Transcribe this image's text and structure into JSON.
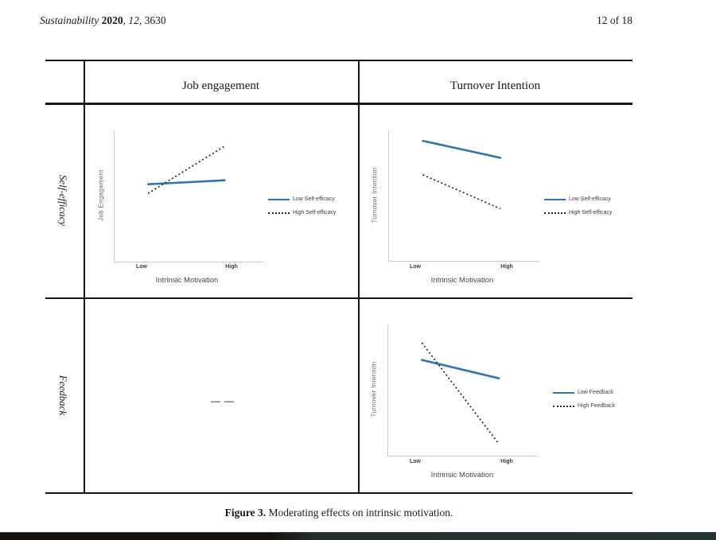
{
  "page": {
    "header": {
      "journal": "Sustainability",
      "space": " ",
      "year": "2020",
      "sep1": ", ",
      "volume": "12",
      "sep2": ", 3630",
      "page_number": "12 of 18"
    },
    "caption": {
      "label": "Figure 3.",
      "text": " Moderating effects on intrinsic motivation."
    }
  },
  "table": {
    "column_headers": [
      "Job engagement",
      "Turnover Intention"
    ],
    "row_headers": [
      "Self-efficacy",
      "Feedback"
    ],
    "empty_cell_marker": "— —"
  },
  "chart_data": [
    {
      "id": "self-efficacy-job-engagement",
      "type": "line",
      "row": "Self-efficacy",
      "column": "Job engagement",
      "xlabel": "Intrinsic Motivation",
      "ylabel": "Job Engagement",
      "x_categories": [
        "Low",
        "High"
      ],
      "ylim": [
        0,
        1
      ],
      "grid": false,
      "legend_position": "right",
      "series": [
        {
          "name": "Low Self-efficacy",
          "style": "solid",
          "color": "#2E75B6",
          "values": [
            0.59,
            0.62
          ]
        },
        {
          "name": "High Self-efficacy",
          "style": "dotted",
          "color": "#262626",
          "values": [
            0.52,
            0.88
          ]
        }
      ]
    },
    {
      "id": "self-efficacy-turnover-intention",
      "type": "line",
      "row": "Self-efficacy",
      "column": "Turnover Intention",
      "xlabel": "Intrinsic Motivation",
      "ylabel": "Turnover Intention",
      "x_categories": [
        "Low",
        "High"
      ],
      "ylim": [
        0,
        1
      ],
      "grid": false,
      "legend_position": "right",
      "series": [
        {
          "name": "Low Self-efficacy",
          "style": "solid",
          "color": "#2E75B6",
          "values": [
            0.92,
            0.79
          ]
        },
        {
          "name": "High Self-efficacy",
          "style": "dotted",
          "color": "#262626",
          "values": [
            0.66,
            0.4
          ]
        }
      ]
    },
    {
      "id": "feedback-turnover-intention",
      "type": "line",
      "row": "Feedback",
      "column": "Turnover Intention",
      "xlabel": "Intrinsic Motivation",
      "ylabel": "Turnover Intention",
      "x_categories": [
        "Low",
        "High"
      ],
      "ylim": [
        0,
        1
      ],
      "grid": false,
      "legend_position": "right",
      "series": [
        {
          "name": "Low Feedback",
          "style": "solid",
          "color": "#2E75B6",
          "values": [
            0.73,
            0.59
          ]
        },
        {
          "name": "High Feedback",
          "style": "dotted",
          "color": "#262626",
          "values": [
            0.86,
            0.09
          ]
        }
      ]
    }
  ]
}
